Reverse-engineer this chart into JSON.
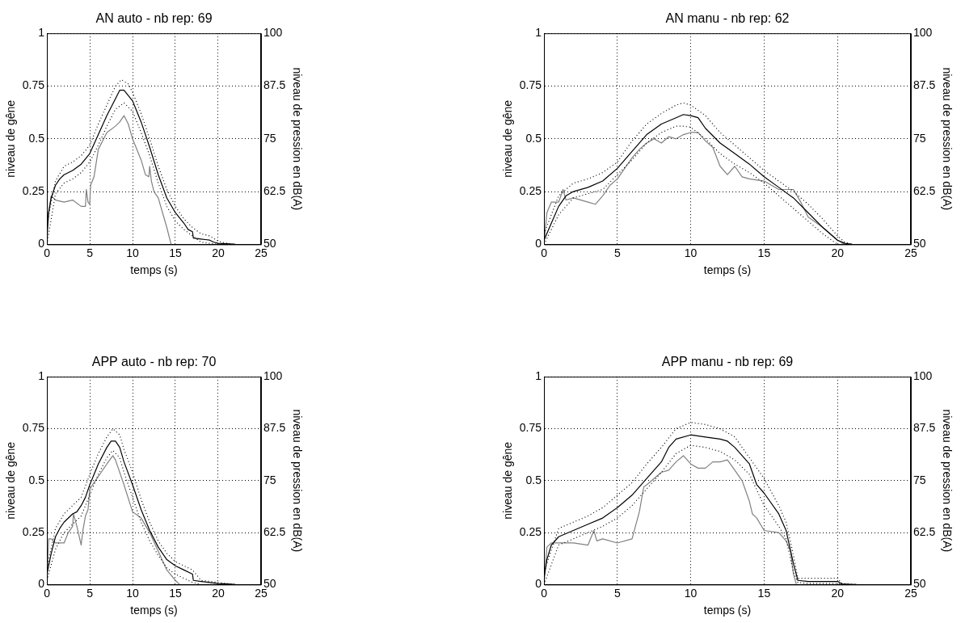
{
  "chart_data": [
    {
      "type": "line",
      "title": "AN auto - nb rep: 69",
      "xlabel": "temps (s)",
      "ylabel": "niveau de gêne",
      "y2label": "niveau de pression en dB(A)",
      "xlim": [
        0,
        25
      ],
      "xticks": [
        0,
        5,
        10,
        15,
        20,
        25
      ],
      "ylim": [
        0,
        1
      ],
      "yticks": [
        0,
        0.25,
        0.5,
        0.75,
        1
      ],
      "y2lim": [
        50,
        100
      ],
      "y2ticks": [
        50,
        62.5,
        75,
        87.5,
        100
      ],
      "grid": true,
      "series": [
        {
          "color": "#000000",
          "line_style": "solid",
          "x": [
            0,
            0.2,
            0.5,
            1,
            1.5,
            2,
            3,
            4,
            5,
            6,
            7,
            8,
            8.5,
            9,
            10,
            11,
            12,
            13,
            14,
            15,
            16,
            16.5,
            17,
            17.1,
            18,
            19,
            19.5,
            20,
            21,
            22
          ],
          "values": [
            0.05,
            0.15,
            0.22,
            0.28,
            0.31,
            0.33,
            0.35,
            0.38,
            0.43,
            0.52,
            0.61,
            0.69,
            0.73,
            0.73,
            0.68,
            0.58,
            0.46,
            0.33,
            0.22,
            0.15,
            0.1,
            0.07,
            0.06,
            0.03,
            0.025,
            0.02,
            0.01,
            0.005,
            0.003,
            0
          ]
        },
        {
          "color": "#000000",
          "line_style": "dotted",
          "x": [
            0,
            1,
            2,
            3,
            4,
            5,
            6,
            7,
            8,
            8.7,
            9.5,
            10,
            11,
            12,
            13,
            14,
            15,
            16,
            17,
            18,
            19,
            20,
            21,
            22
          ],
          "values": [
            0.1,
            0.3,
            0.37,
            0.39,
            0.42,
            0.47,
            0.57,
            0.66,
            0.75,
            0.78,
            0.76,
            0.72,
            0.62,
            0.5,
            0.37,
            0.26,
            0.18,
            0.12,
            0.08,
            0.05,
            0.04,
            0.015,
            0.005,
            0
          ]
        },
        {
          "color": "#000000",
          "line_style": "dotted",
          "x": [
            0,
            1,
            2,
            3,
            4,
            5,
            6,
            7,
            8,
            9,
            10,
            11,
            12,
            13,
            14,
            15,
            16,
            17,
            18,
            19,
            20,
            22
          ],
          "values": [
            0,
            0.24,
            0.29,
            0.31,
            0.34,
            0.39,
            0.47,
            0.56,
            0.64,
            0.67,
            0.63,
            0.53,
            0.42,
            0.29,
            0.18,
            0.11,
            0.07,
            0.04,
            0.01,
            0.005,
            0,
            0
          ]
        },
        {
          "color": "#808080",
          "line_style": "solid",
          "axis": "y2",
          "x": [
            0,
            0.2,
            0.5,
            1,
            2,
            3,
            4,
            4.5,
            4.6,
            4.8,
            5,
            5.1,
            5.5,
            6,
            6.5,
            7,
            8,
            8.5,
            9,
            9.5,
            10,
            11,
            11.5,
            11.9,
            12,
            12.2,
            12.5,
            13,
            13.5,
            14,
            14.5
          ],
          "values": [
            50,
            57.5,
            61.5,
            60.5,
            60,
            60.5,
            59,
            59,
            63,
            60,
            59.5,
            64,
            66,
            72.5,
            74.5,
            76.5,
            78,
            79,
            80.5,
            78.5,
            75,
            70,
            66.5,
            66,
            68.5,
            65,
            62.5,
            61,
            57.5,
            54,
            50
          ]
        }
      ]
    },
    {
      "type": "line",
      "title": "AN manu - nb rep: 62",
      "xlabel": "temps (s)",
      "ylabel": "niveau de gêne",
      "y2label": "niveau de pression en dB(A)",
      "xlim": [
        0,
        25
      ],
      "xticks": [
        0,
        5,
        10,
        15,
        20,
        25
      ],
      "ylim": [
        0,
        1
      ],
      "yticks": [
        0,
        0.25,
        0.5,
        0.75,
        1
      ],
      "y2lim": [
        50,
        100
      ],
      "y2ticks": [
        50,
        62.5,
        75,
        87.5,
        100
      ],
      "grid": true,
      "series": [
        {
          "color": "#000000",
          "line_style": "solid",
          "x": [
            0,
            0.5,
            1,
            1.5,
            2,
            3,
            4,
            5,
            6,
            7,
            8,
            9,
            9.5,
            10,
            10.5,
            11,
            12,
            13,
            14,
            15,
            16,
            17,
            18,
            19,
            20,
            20.5,
            21
          ],
          "values": [
            0.02,
            0.1,
            0.18,
            0.23,
            0.25,
            0.27,
            0.3,
            0.36,
            0.44,
            0.52,
            0.57,
            0.6,
            0.615,
            0.61,
            0.6,
            0.55,
            0.48,
            0.43,
            0.38,
            0.32,
            0.27,
            0.22,
            0.15,
            0.08,
            0.02,
            0.005,
            0
          ]
        },
        {
          "color": "#000000",
          "line_style": "dotted",
          "x": [
            0,
            1,
            2,
            3,
            4,
            5,
            6,
            7,
            8,
            9,
            9.5,
            10,
            11,
            12,
            13,
            14,
            15,
            16,
            17,
            18,
            19,
            20,
            20.5,
            21
          ],
          "values": [
            0.05,
            0.23,
            0.29,
            0.31,
            0.34,
            0.39,
            0.49,
            0.57,
            0.62,
            0.66,
            0.67,
            0.66,
            0.61,
            0.53,
            0.47,
            0.41,
            0.35,
            0.3,
            0.25,
            0.19,
            0.12,
            0.04,
            0.01,
            0
          ]
        },
        {
          "color": "#000000",
          "line_style": "dotted",
          "x": [
            0,
            1,
            2,
            3,
            4,
            5,
            6,
            7,
            8,
            9,
            9.5,
            10,
            11,
            12,
            13,
            14,
            15,
            16,
            17,
            18,
            19,
            20,
            21
          ],
          "values": [
            0,
            0.14,
            0.22,
            0.24,
            0.26,
            0.33,
            0.4,
            0.48,
            0.53,
            0.56,
            0.56,
            0.555,
            0.5,
            0.43,
            0.38,
            0.34,
            0.29,
            0.23,
            0.17,
            0.11,
            0.05,
            0,
            0
          ]
        },
        {
          "color": "#808080",
          "line_style": "solid",
          "axis": "y2",
          "x": [
            0,
            0.2,
            0.5,
            1,
            1.3,
            1.5,
            2,
            3,
            3.5,
            4,
            4.5,
            5,
            5.5,
            6,
            6.5,
            7,
            7.5,
            8,
            8.5,
            9,
            9.5,
            10,
            10.5,
            11,
            11.5,
            12,
            12.5,
            13,
            13.5,
            14,
            15,
            16,
            17,
            17.5,
            18,
            19,
            20,
            20.5
          ],
          "values": [
            50,
            57.5,
            60,
            60,
            63,
            60.5,
            61,
            60,
            59.5,
            61.5,
            64,
            65.5,
            68,
            70.5,
            72.5,
            74,
            75,
            74,
            75.5,
            75,
            76,
            76.5,
            76.5,
            74.5,
            73,
            68.5,
            66.5,
            68.5,
            66,
            65.5,
            65,
            63,
            63,
            60,
            56.5,
            54,
            51,
            50
          ]
        }
      ]
    },
    {
      "type": "line",
      "title": "APP auto - nb rep: 70",
      "xlabel": "temps (s)",
      "ylabel": "niveau de gêne",
      "y2label": "niveau de pression en dB(A)",
      "xlim": [
        0,
        25
      ],
      "xticks": [
        0,
        5,
        10,
        15,
        20,
        25
      ],
      "ylim": [
        0,
        1
      ],
      "yticks": [
        0,
        0.25,
        0.5,
        0.75,
        1
      ],
      "y2lim": [
        50,
        100
      ],
      "y2ticks": [
        50,
        62.5,
        75,
        87.5,
        100
      ],
      "grid": true,
      "series": [
        {
          "color": "#000000",
          "line_style": "solid",
          "x": [
            0,
            0.5,
            1,
            1.5,
            2,
            3,
            3.5,
            4,
            4.5,
            5,
            6,
            7,
            7.5,
            8,
            8.5,
            9,
            10,
            11,
            12,
            13,
            14,
            15,
            16,
            17,
            17.1,
            18,
            19,
            20,
            21,
            22
          ],
          "values": [
            0.05,
            0.15,
            0.23,
            0.27,
            0.3,
            0.34,
            0.35,
            0.38,
            0.42,
            0.48,
            0.58,
            0.66,
            0.69,
            0.69,
            0.66,
            0.59,
            0.48,
            0.36,
            0.26,
            0.18,
            0.12,
            0.09,
            0.07,
            0.05,
            0.02,
            0.015,
            0.01,
            0.005,
            0.003,
            0
          ]
        },
        {
          "color": "#000000",
          "line_style": "dotted",
          "x": [
            0,
            1,
            2,
            3,
            4,
            5,
            6,
            7,
            7.7,
            8.5,
            9,
            10,
            11,
            12,
            13,
            14,
            15,
            16,
            17,
            18,
            19,
            20,
            21,
            22
          ],
          "values": [
            0.08,
            0.27,
            0.34,
            0.38,
            0.42,
            0.53,
            0.63,
            0.71,
            0.75,
            0.72,
            0.65,
            0.54,
            0.41,
            0.3,
            0.21,
            0.15,
            0.11,
            0.09,
            0.07,
            0.02,
            0.015,
            0.01,
            0.005,
            0
          ]
        },
        {
          "color": "#000000",
          "line_style": "dotted",
          "x": [
            0,
            1,
            2,
            3,
            4,
            5,
            6,
            7,
            7.7,
            8.5,
            9,
            10,
            11,
            12,
            13,
            14,
            15,
            16,
            17,
            18,
            22
          ],
          "values": [
            0.02,
            0.17,
            0.25,
            0.29,
            0.33,
            0.43,
            0.53,
            0.61,
            0.645,
            0.61,
            0.54,
            0.42,
            0.3,
            0.21,
            0.14,
            0.08,
            0.05,
            0.03,
            0.01,
            0,
            0
          ]
        },
        {
          "color": "#808080",
          "line_style": "solid",
          "axis": "y2",
          "x": [
            0,
            0.2,
            0.5,
            1,
            2,
            2.5,
            3,
            3.1,
            3.5,
            4,
            4.2,
            4.5,
            4.8,
            5,
            6,
            7,
            7.7,
            8,
            9,
            10,
            11,
            12,
            13,
            14,
            15,
            15.5
          ],
          "values": [
            50,
            61,
            61,
            60,
            60,
            62.5,
            64,
            67,
            64,
            59.5,
            63,
            66.5,
            68,
            73,
            76,
            79,
            81,
            80,
            74,
            67.5,
            66,
            62.5,
            58,
            53.5,
            51,
            50
          ]
        }
      ]
    },
    {
      "type": "line",
      "title": "APP manu - nb rep: 69",
      "xlabel": "temps (s)",
      "ylabel": "niveau de gêne",
      "y2label": "niveau de pression en dB(A)",
      "xlim": [
        0,
        25
      ],
      "xticks": [
        0,
        5,
        10,
        15,
        20,
        25
      ],
      "ylim": [
        0,
        1
      ],
      "yticks": [
        0,
        0.25,
        0.5,
        0.75,
        1
      ],
      "y2lim": [
        50,
        100
      ],
      "y2ticks": [
        50,
        62.5,
        75,
        87.5,
        100
      ],
      "grid": true,
      "series": [
        {
          "color": "#000000",
          "line_style": "solid",
          "x": [
            0,
            0.2,
            0.5,
            1,
            2,
            3,
            4,
            5,
            6,
            7,
            8,
            8.5,
            9,
            10,
            11,
            12,
            12.5,
            13,
            14,
            14.5,
            15,
            16,
            16.5,
            17,
            17.3,
            18,
            19,
            20,
            20.3,
            21,
            21.3
          ],
          "values": [
            0.03,
            0.12,
            0.19,
            0.23,
            0.26,
            0.29,
            0.32,
            0.37,
            0.43,
            0.51,
            0.59,
            0.66,
            0.7,
            0.72,
            0.71,
            0.7,
            0.69,
            0.66,
            0.58,
            0.48,
            0.44,
            0.34,
            0.26,
            0.1,
            0.02,
            0.015,
            0.015,
            0.015,
            0.003,
            0,
            0
          ]
        },
        {
          "color": "#000000",
          "line_style": "dotted",
          "x": [
            0,
            1,
            2,
            3,
            4,
            5,
            6,
            7,
            8,
            9,
            10,
            11,
            12,
            13,
            14,
            15,
            16,
            16.5,
            17,
            17.3,
            18,
            20,
            20.3,
            21.3
          ],
          "values": [
            0.06,
            0.27,
            0.3,
            0.33,
            0.37,
            0.43,
            0.49,
            0.58,
            0.66,
            0.75,
            0.78,
            0.77,
            0.75,
            0.71,
            0.61,
            0.51,
            0.38,
            0.3,
            0.14,
            0.03,
            0.03,
            0.03,
            0.005,
            0
          ]
        },
        {
          "color": "#000000",
          "line_style": "dotted",
          "x": [
            0,
            1,
            2,
            3,
            4,
            5,
            6,
            7,
            8,
            9,
            10,
            11,
            12,
            13,
            14,
            15,
            16,
            16.5,
            17,
            17.3,
            18,
            20,
            20.3,
            21.3
          ],
          "values": [
            0,
            0.19,
            0.22,
            0.25,
            0.28,
            0.32,
            0.38,
            0.46,
            0.54,
            0.63,
            0.67,
            0.66,
            0.64,
            0.6,
            0.53,
            0.38,
            0.28,
            0.22,
            0.06,
            0.01,
            0.005,
            0.005,
            0,
            0
          ]
        },
        {
          "color": "#808080",
          "line_style": "solid",
          "axis": "y2",
          "x": [
            0,
            0.2,
            0.5,
            1,
            2,
            3,
            3.4,
            3.6,
            4,
            5,
            6,
            6.5,
            6.8,
            7,
            8,
            8.5,
            9,
            9.5,
            10,
            10.5,
            11,
            11.5,
            12,
            12.5,
            13,
            13.5,
            14,
            14.2,
            14.5,
            15,
            16,
            16.5,
            16.8,
            17,
            17.2
          ],
          "values": [
            50,
            59,
            60,
            60,
            60,
            59.5,
            63,
            60.5,
            61,
            60,
            61,
            67.5,
            73.5,
            74,
            77,
            77.5,
            79.5,
            81,
            79,
            78,
            78,
            79.5,
            79.5,
            80,
            77.5,
            75,
            70,
            67,
            66,
            63,
            62.5,
            60.5,
            58,
            52.5,
            50
          ]
        }
      ]
    }
  ]
}
